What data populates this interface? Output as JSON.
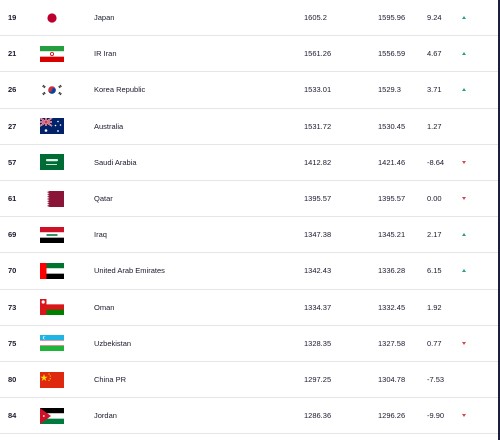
{
  "rows": [
    {
      "rank": "19",
      "country": "Japan",
      "total": "1605.2",
      "previous": "1595.96",
      "change": "9.24",
      "trend": "up",
      "flag": "jp"
    },
    {
      "rank": "21",
      "country": "IR Iran",
      "total": "1561.26",
      "previous": "1556.59",
      "change": "4.67",
      "trend": "up",
      "flag": "ir"
    },
    {
      "rank": "26",
      "country": "Korea Republic",
      "total": "1533.01",
      "previous": "1529.3",
      "change": "3.71",
      "trend": "up",
      "flag": "kr"
    },
    {
      "rank": "27",
      "country": "Australia",
      "total": "1531.72",
      "previous": "1530.45",
      "change": "1.27",
      "trend": "none",
      "flag": "au"
    },
    {
      "rank": "57",
      "country": "Saudi Arabia",
      "total": "1412.82",
      "previous": "1421.46",
      "change": "-8.64",
      "trend": "down",
      "flag": "sa"
    },
    {
      "rank": "61",
      "country": "Qatar",
      "total": "1395.57",
      "previous": "1395.57",
      "change": "0.00",
      "trend": "down",
      "flag": "qa"
    },
    {
      "rank": "69",
      "country": "Iraq",
      "total": "1347.38",
      "previous": "1345.21",
      "change": "2.17",
      "trend": "up",
      "flag": "iq"
    },
    {
      "rank": "70",
      "country": "United Arab Emirates",
      "total": "1342.43",
      "previous": "1336.28",
      "change": "6.15",
      "trend": "up",
      "flag": "ae"
    },
    {
      "rank": "73",
      "country": "Oman",
      "total": "1334.37",
      "previous": "1332.45",
      "change": "1.92",
      "trend": "none",
      "flag": "om"
    },
    {
      "rank": "75",
      "country": "Uzbekistan",
      "total": "1328.35",
      "previous": "1327.58",
      "change": "0.77",
      "trend": "down",
      "flag": "uz"
    },
    {
      "rank": "80",
      "country": "China PR",
      "total": "1297.25",
      "previous": "1304.78",
      "change": "-7.53",
      "trend": "none",
      "flag": "cn"
    },
    {
      "rank": "84",
      "country": "Jordan",
      "total": "1286.36",
      "previous": "1296.26",
      "change": "-9.90",
      "trend": "down",
      "flag": "jo"
    }
  ],
  "colors": {
    "up": "#2a9d8f",
    "down": "#d64550"
  }
}
